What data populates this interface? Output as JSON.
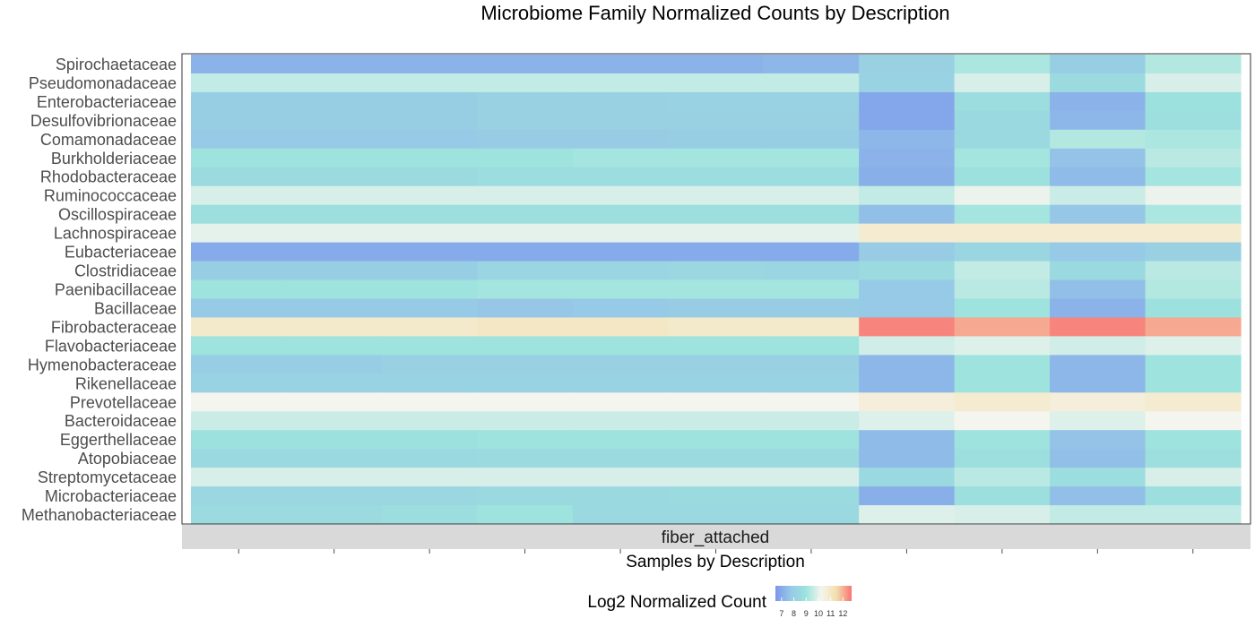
{
  "chart_data": {
    "type": "heatmap",
    "title": "Microbiome Family Normalized Counts by Description",
    "xlabel": "Samples by Description",
    "ylabel": "",
    "facet_label": "fiber_attached",
    "legend": {
      "title": "Log2 Normalized Count",
      "position": "bottom",
      "ticks": [
        "7",
        "8",
        "9",
        "10",
        "11",
        "12"
      ],
      "range": [
        6.5,
        12.7
      ],
      "colors": [
        "#7b96ec",
        "#97c9e6",
        "#9de3dd",
        "#f4f5ee",
        "#f3dfae",
        "#f87474"
      ]
    },
    "grid": false,
    "families": [
      "Spirochaetaceae",
      "Pseudomonadaceae",
      "Enterobacteriaceae",
      "Desulfovibrionaceae",
      "Comamonadaceae",
      "Burkholderiaceae",
      "Rhodobacteraceae",
      "Ruminococcaceae",
      "Oscillospiraceae",
      "Lachnospiraceae",
      "Eubacteriaceae",
      "Clostridiaceae",
      "Paenibacillaceae",
      "Bacillaceae",
      "Fibrobacteraceae",
      "Flavobacteriaceae",
      "Hymenobacteraceae",
      "Rikenellaceae",
      "Prevotellaceae",
      "Bacteroidaceae",
      "Eggerthellaceae",
      "Atopobiaceae",
      "Streptomycetaceae",
      "Microbacteriaceae",
      "Methanobacteriaceae"
    ],
    "samples": 11,
    "values": [
      [
        7.2,
        7.2,
        7.2,
        7.2,
        7.2,
        7.2,
        7.3,
        8.1,
        9.2,
        8.0,
        9.3
      ],
      [
        9.5,
        9.5,
        9.5,
        9.5,
        9.5,
        9.5,
        9.5,
        8.2,
        9.8,
        8.6,
        9.8
      ],
      [
        8.0,
        8.0,
        8.0,
        8.1,
        8.1,
        8.2,
        8.2,
        6.9,
        8.7,
        7.2,
        8.9
      ],
      [
        8.0,
        8.0,
        8.0,
        8.1,
        8.1,
        8.1,
        8.1,
        6.9,
        8.5,
        7.3,
        8.8
      ],
      [
        7.8,
        7.8,
        7.8,
        7.9,
        7.9,
        8.0,
        8.0,
        7.3,
        8.5,
        9.3,
        9.2
      ],
      [
        9.0,
        9.0,
        9.0,
        9.0,
        9.1,
        9.1,
        9.1,
        7.2,
        9.1,
        7.6,
        9.4
      ],
      [
        8.6,
        8.6,
        8.6,
        8.7,
        8.7,
        8.7,
        8.7,
        7.1,
        8.9,
        7.4,
        9.1
      ],
      [
        9.8,
        9.8,
        9.8,
        9.8,
        9.8,
        9.8,
        9.8,
        9.5,
        10.1,
        9.6,
        10.1
      ],
      [
        8.8,
        8.8,
        8.8,
        8.8,
        8.8,
        8.8,
        8.8,
        7.5,
        9.1,
        7.7,
        9.2
      ],
      [
        10.0,
        10.0,
        10.0,
        10.0,
        10.0,
        10.0,
        10.0,
        10.8,
        10.8,
        10.8,
        10.8
      ],
      [
        7.0,
        7.0,
        7.0,
        7.0,
        7.0,
        7.0,
        7.0,
        7.9,
        8.3,
        7.8,
        8.1
      ],
      [
        8.0,
        8.0,
        8.0,
        8.3,
        8.3,
        8.4,
        8.3,
        8.6,
        9.5,
        8.5,
        9.4
      ],
      [
        9.0,
        9.0,
        9.0,
        9.1,
        9.1,
        9.1,
        9.1,
        7.8,
        9.4,
        7.5,
        9.3
      ],
      [
        7.8,
        7.8,
        7.8,
        7.7,
        7.8,
        7.9,
        7.9,
        7.8,
        9.0,
        7.2,
        8.9
      ],
      [
        10.9,
        10.9,
        10.9,
        11.0,
        11.0,
        10.9,
        10.9,
        12.5,
        12.1,
        12.5,
        12.1
      ],
      [
        9.0,
        9.0,
        9.0,
        9.0,
        9.0,
        9.0,
        9.0,
        9.7,
        9.9,
        9.7,
        9.9
      ],
      [
        8.0,
        8.0,
        8.1,
        8.1,
        8.1,
        8.1,
        8.1,
        7.3,
        9.0,
        7.3,
        9.0
      ],
      [
        8.2,
        8.2,
        8.2,
        8.2,
        8.2,
        8.2,
        8.2,
        7.3,
        9.0,
        7.3,
        9.0
      ],
      [
        10.2,
        10.2,
        10.2,
        10.2,
        10.2,
        10.2,
        10.2,
        10.6,
        10.8,
        10.6,
        10.8
      ],
      [
        9.6,
        9.6,
        9.6,
        9.6,
        9.6,
        9.6,
        9.6,
        9.9,
        10.2,
        9.9,
        10.2
      ],
      [
        8.9,
        8.9,
        8.9,
        9.0,
        9.0,
        9.0,
        9.0,
        7.4,
        9.0,
        7.6,
        9.0
      ],
      [
        8.5,
        8.5,
        8.5,
        8.6,
        8.6,
        8.6,
        8.6,
        7.4,
        8.8,
        7.5,
        8.8
      ],
      [
        9.8,
        9.8,
        9.8,
        9.8,
        9.8,
        9.8,
        9.8,
        8.5,
        9.4,
        8.7,
        9.8
      ],
      [
        8.4,
        8.4,
        8.4,
        8.5,
        8.5,
        8.6,
        8.6,
        7.1,
        8.8,
        7.5,
        8.8
      ],
      [
        8.6,
        8.6,
        8.7,
        9.0,
        8.5,
        8.5,
        8.5,
        9.9,
        9.8,
        9.5,
        9.5
      ]
    ]
  }
}
